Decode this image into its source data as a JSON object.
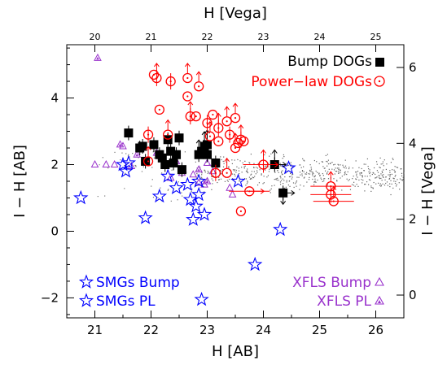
{
  "chart_data": {
    "type": "scatter",
    "xlabel": "H [AB]",
    "ylabel": "I − H [AB]",
    "top_xlabel": "H [Vega]",
    "right_ylabel": "I − H [Vega]",
    "xlim": [
      20.5,
      26.5
    ],
    "ylim": [
      -2.6,
      5.6
    ],
    "top_xlim": [
      19.5,
      25.5
    ],
    "right_ylim": [
      -0.6,
      6.6
    ],
    "x_ticks": [
      21,
      22,
      23,
      24,
      25,
      26
    ],
    "y_ticks": [
      -2,
      0,
      2,
      4
    ],
    "top_x_ticks": [
      20,
      21,
      22,
      23,
      24,
      25
    ],
    "right_y_ticks": [
      0,
      2,
      4,
      6
    ],
    "grid": false,
    "legend": {
      "top_right": [
        "Bump DOGs",
        "Power−law DOGs"
      ],
      "bottom_left": [
        "SMGs Bump",
        "SMGs PL"
      ],
      "bottom_right": [
        "XFLS Bump",
        "XFLS PL"
      ]
    },
    "series": [
      {
        "name": "Bump DOGs",
        "color": "#000000",
        "marker": "filled-square",
        "points": [
          {
            "x": 21.6,
            "y": 2.95
          },
          {
            "x": 21.8,
            "y": 2.5
          },
          {
            "x": 21.85,
            "y": 2.55
          },
          {
            "x": 21.9,
            "y": 2.1
          },
          {
            "x": 22.05,
            "y": 2.6
          },
          {
            "x": 22.15,
            "y": 2.3
          },
          {
            "x": 22.2,
            "y": 2.2
          },
          {
            "x": 22.25,
            "y": 2.0
          },
          {
            "x": 22.3,
            "y": 2.75
          },
          {
            "x": 22.35,
            "y": 2.4
          },
          {
            "x": 22.4,
            "y": 2.05
          },
          {
            "x": 22.45,
            "y": 2.3
          },
          {
            "x": 22.5,
            "y": 2.8
          },
          {
            "x": 22.55,
            "y": 1.85
          },
          {
            "x": 22.85,
            "y": 2.3
          },
          {
            "x": 22.9,
            "y": 2.4
          },
          {
            "x": 22.95,
            "y": 2.55
          },
          {
            "x": 23.0,
            "y": 2.3
          },
          {
            "x": 23.0,
            "y": 2.6
          },
          {
            "x": 23.15,
            "y": 2.05
          },
          {
            "x": 24.2,
            "y": 2.0
          },
          {
            "x": 24.35,
            "y": 1.15
          }
        ]
      },
      {
        "name": "Power−law DOGs",
        "color": "#ff0000",
        "marker": "circle-dot",
        "points": [
          {
            "x": 21.95,
            "y": 2.9
          },
          {
            "x": 21.95,
            "y": 2.1
          },
          {
            "x": 22.05,
            "y": 4.7
          },
          {
            "x": 22.1,
            "y": 4.6
          },
          {
            "x": 22.15,
            "y": 3.65
          },
          {
            "x": 22.3,
            "y": 2.9
          },
          {
            "x": 22.35,
            "y": 4.5
          },
          {
            "x": 22.65,
            "y": 4.6
          },
          {
            "x": 22.65,
            "y": 4.05
          },
          {
            "x": 22.7,
            "y": 3.45
          },
          {
            "x": 22.8,
            "y": 3.45
          },
          {
            "x": 22.85,
            "y": 4.35
          },
          {
            "x": 23.0,
            "y": 3.25
          },
          {
            "x": 23.05,
            "y": 2.85
          },
          {
            "x": 23.1,
            "y": 3.5
          },
          {
            "x": 23.2,
            "y": 3.1
          },
          {
            "x": 23.2,
            "y": 2.7
          },
          {
            "x": 23.35,
            "y": 3.3
          },
          {
            "x": 23.4,
            "y": 2.9
          },
          {
            "x": 23.5,
            "y": 2.5
          },
          {
            "x": 23.55,
            "y": 2.65
          },
          {
            "x": 23.6,
            "y": 2.75
          },
          {
            "x": 23.65,
            "y": 2.7
          },
          {
            "x": 23.5,
            "y": 3.4
          },
          {
            "x": 23.15,
            "y": 1.75
          },
          {
            "x": 23.35,
            "y": 1.75
          },
          {
            "x": 23.75,
            "y": 1.2
          },
          {
            "x": 24.0,
            "y": 2.0
          },
          {
            "x": 23.6,
            "y": 0.6
          },
          {
            "x": 25.2,
            "y": 1.35
          },
          {
            "x": 25.2,
            "y": 1.1
          },
          {
            "x": 25.25,
            "y": 0.9
          }
        ]
      },
      {
        "name": "SMGs Bump",
        "color": "#0000ff",
        "marker": "open-star",
        "points": [
          {
            "x": 20.75,
            "y": 1.0
          },
          {
            "x": 21.5,
            "y": 2.0
          },
          {
            "x": 21.55,
            "y": 1.8
          },
          {
            "x": 21.6,
            "y": 2.05
          },
          {
            "x": 21.9,
            "y": 0.4
          },
          {
            "x": 22.15,
            "y": 1.05
          },
          {
            "x": 22.3,
            "y": 1.65
          },
          {
            "x": 22.45,
            "y": 1.3
          },
          {
            "x": 22.7,
            "y": 0.95
          },
          {
            "x": 22.75,
            "y": 0.35
          },
          {
            "x": 22.8,
            "y": 0.75
          },
          {
            "x": 22.85,
            "y": 1.1
          },
          {
            "x": 22.95,
            "y": 0.5
          },
          {
            "x": 22.85,
            "y": 1.5
          },
          {
            "x": 22.65,
            "y": 1.4
          },
          {
            "x": 23.55,
            "y": 1.5
          },
          {
            "x": 24.3,
            "y": 0.05
          },
          {
            "x": 24.45,
            "y": 1.9
          },
          {
            "x": 22.9,
            "y": -2.05
          },
          {
            "x": 23.85,
            "y": -1.0
          }
        ]
      },
      {
        "name": "XFLS Bump",
        "color": "#9932cc",
        "marker": "open-triangle",
        "points": [
          {
            "x": 21.0,
            "y": 2.0
          },
          {
            "x": 21.2,
            "y": 2.0
          },
          {
            "x": 21.5,
            "y": 2.55
          },
          {
            "x": 22.35,
            "y": 1.6
          },
          {
            "x": 22.55,
            "y": 1.75
          },
          {
            "x": 22.75,
            "y": 1.7
          },
          {
            "x": 22.85,
            "y": 1.45
          },
          {
            "x": 22.95,
            "y": 1.4
          },
          {
            "x": 23.1,
            "y": 1.8
          },
          {
            "x": 23.4,
            "y": 1.3
          },
          {
            "x": 23.45,
            "y": 1.1
          },
          {
            "x": 21.35,
            "y": 2.0
          },
          {
            "x": 21.65,
            "y": 1.95
          },
          {
            "x": 23.0,
            "y": 2.05
          }
        ]
      },
      {
        "name": "XFLS PL",
        "color": "#9932cc",
        "marker": "filled-triangle",
        "points": [
          {
            "x": 21.05,
            "y": 5.2
          },
          {
            "x": 21.45,
            "y": 2.6
          },
          {
            "x": 21.75,
            "y": 2.3
          },
          {
            "x": 22.45,
            "y": 2.1
          },
          {
            "x": 22.85,
            "y": 1.85
          },
          {
            "x": 23.0,
            "y": 1.5
          },
          {
            "x": 22.1,
            "y": 2.35
          }
        ]
      }
    ]
  }
}
